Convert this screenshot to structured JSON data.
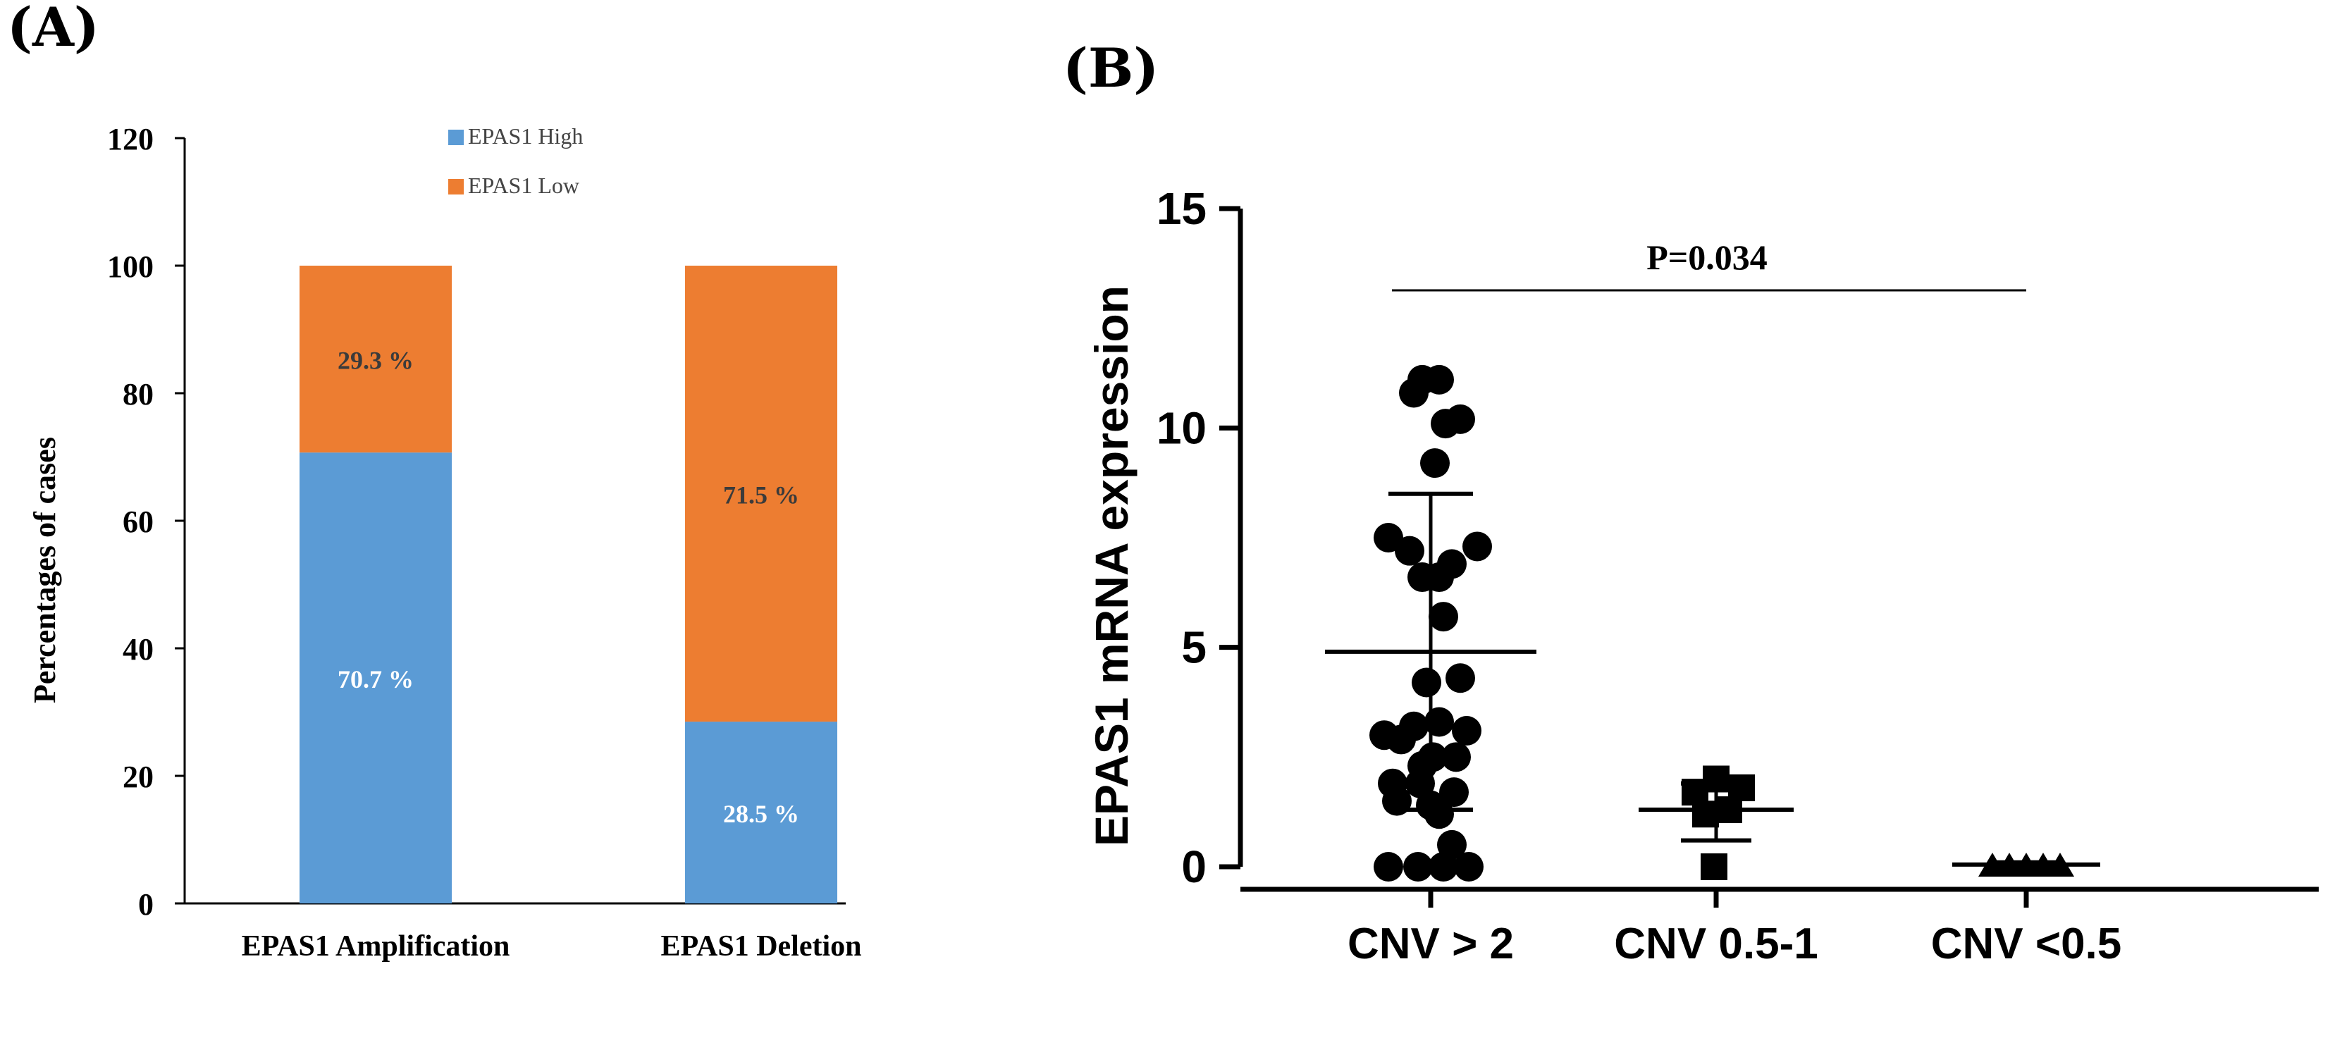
{
  "panelA": {
    "label": "(A)",
    "chart_data": {
      "type": "bar",
      "stacked": true,
      "categories": [
        "EPAS1 Amplification",
        "EPAS1 Deletion"
      ],
      "series": [
        {
          "name": "EPAS1 High",
          "values": [
            70.7,
            28.5
          ],
          "labels": [
            "70.7 %",
            "28.5 %"
          ],
          "color": "#5b9bd5"
        },
        {
          "name": "EPAS1 Low",
          "values": [
            29.3,
            71.5
          ],
          "labels": [
            "29.3 %",
            "71.5 %"
          ],
          "color": "#ed7d31"
        }
      ],
      "ylabel": "Percentages of cases",
      "xlabel": "",
      "ylim": [
        0,
        120
      ],
      "yticks": [
        0,
        20,
        40,
        60,
        80,
        100,
        120
      ],
      "legend": "top-center",
      "grid": false
    }
  },
  "panelB": {
    "label": "(B)",
    "chart_data": {
      "type": "scatter",
      "ylabel": "EPAS1 mRNA expression",
      "xlabel": "",
      "ylim": [
        0,
        15
      ],
      "yticks": [
        0,
        5,
        10,
        15
      ],
      "annotation": "P=0.034",
      "groups": [
        {
          "name": "CNV > 2",
          "marker": "circle",
          "mean": 4.9,
          "sd_upper": 8.5,
          "sd_lower": 1.3,
          "points": [
            [
              -0.4,
              10.8
            ],
            [
              -0.2,
              11.1
            ],
            [
              0.2,
              11.1
            ],
            [
              0.35,
              10.1
            ],
            [
              0.7,
              10.2
            ],
            [
              0.1,
              9.2
            ],
            [
              -1.0,
              7.5
            ],
            [
              -0.5,
              7.2
            ],
            [
              0.5,
              6.9
            ],
            [
              1.1,
              7.3
            ],
            [
              0.2,
              6.6
            ],
            [
              -0.2,
              6.6
            ],
            [
              0.3,
              5.7
            ],
            [
              -0.1,
              4.2
            ],
            [
              0.7,
              4.3
            ],
            [
              -1.1,
              3.0
            ],
            [
              -0.4,
              3.2
            ],
            [
              0.2,
              3.3
            ],
            [
              0.85,
              3.1
            ],
            [
              -0.7,
              2.9
            ],
            [
              0.05,
              2.5
            ],
            [
              0.6,
              2.5
            ],
            [
              -0.2,
              2.3
            ],
            [
              -0.9,
              1.9
            ],
            [
              -0.25,
              1.9
            ],
            [
              0.55,
              1.7
            ],
            [
              0.0,
              1.4
            ],
            [
              -0.8,
              1.5
            ],
            [
              0.2,
              1.2
            ],
            [
              0.5,
              0.5
            ],
            [
              -1.0,
              0.0
            ],
            [
              -0.3,
              0.0
            ],
            [
              0.3,
              0.0
            ],
            [
              0.9,
              0.0
            ]
          ]
        },
        {
          "name": "CNV 0.5-1",
          "marker": "square",
          "mean": 1.3,
          "sd_upper": 1.9,
          "sd_lower": 0.6,
          "points": [
            [
              -0.5,
              1.7
            ],
            [
              0.0,
              2.0
            ],
            [
              0.6,
              1.8
            ],
            [
              -0.25,
              1.2
            ],
            [
              0.3,
              1.3
            ],
            [
              -0.05,
              0.0
            ]
          ]
        },
        {
          "name": "CNV <0.5",
          "marker": "triangle",
          "mean": 0.05,
          "sd_upper": 0.1,
          "sd_lower": 0.0,
          "points": [
            [
              -0.8,
              0.0
            ],
            [
              -0.4,
              0.0
            ],
            [
              0.0,
              0.0
            ],
            [
              0.4,
              0.0
            ],
            [
              0.8,
              0.0
            ]
          ]
        }
      ]
    }
  }
}
